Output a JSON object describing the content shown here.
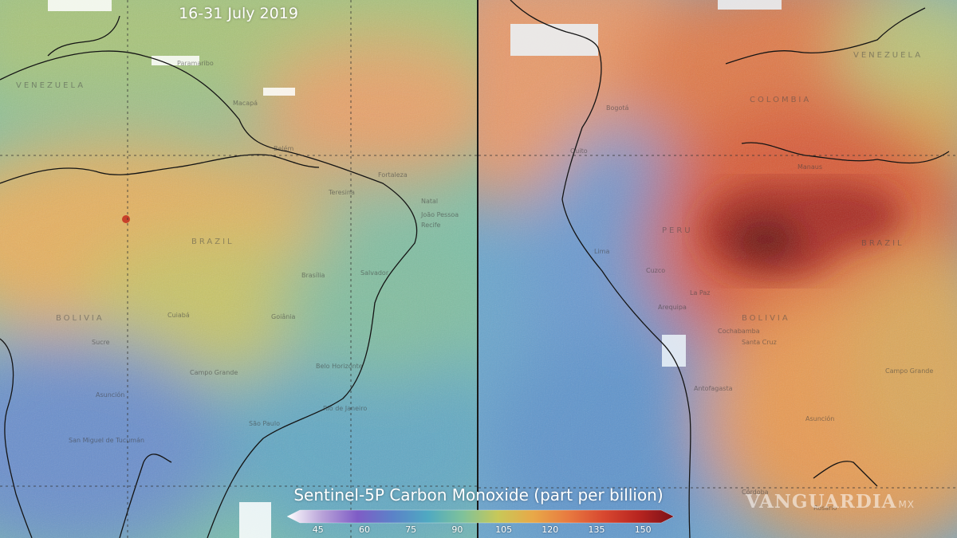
{
  "title": "16-31 July 2019",
  "legend": {
    "title": "Sentinel-5P Carbon Monoxide (part per billion)",
    "ticks": [
      "45",
      "60",
      "75",
      "90",
      "105",
      "120",
      "135",
      "150"
    ],
    "tick_values": [
      45,
      60,
      75,
      90,
      105,
      120,
      135,
      150
    ],
    "range": [
      35,
      160
    ],
    "colors": [
      "#ffffff",
      "#b8a2d8",
      "#7f5cc6",
      "#5b82c8",
      "#4fa9c2",
      "#7fc29a",
      "#c8c858",
      "#e8a848",
      "#e87a40",
      "#d84830",
      "#b82520",
      "#7a1018"
    ]
  },
  "watermark": {
    "text": "VANGUARDIA",
    "suffix": "MX"
  },
  "left_map": {
    "country_labels": [
      "VENEZUELA",
      "BRAZIL",
      "BOLIVIA"
    ],
    "city_labels": [
      "Paramaribo",
      "Macapá",
      "Belém",
      "Fortaleza",
      "Natal",
      "Recife",
      "Salvador",
      "Brasília",
      "Cuiabá",
      "Goiânia",
      "Belo Horizonte",
      "Rio de Janeiro",
      "São Paulo",
      "Campo Grande",
      "Asunción",
      "San Miguel de Tucumán",
      "Sucre",
      "Teresina",
      "João Pessoa"
    ]
  },
  "right_map": {
    "country_labels": [
      "VENEZUELA",
      "COLOMBIA",
      "PERU",
      "BRAZIL",
      "BOLIVIA"
    ],
    "city_labels": [
      "Bogotá",
      "Quito",
      "Lima",
      "Manaus",
      "Cuzco",
      "Arequipa",
      "La Paz",
      "Santa Cruz",
      "Cochabamba",
      "Antofagasta",
      "Asunción",
      "Campo Grande",
      "Córdoba",
      "Rosario"
    ]
  }
}
